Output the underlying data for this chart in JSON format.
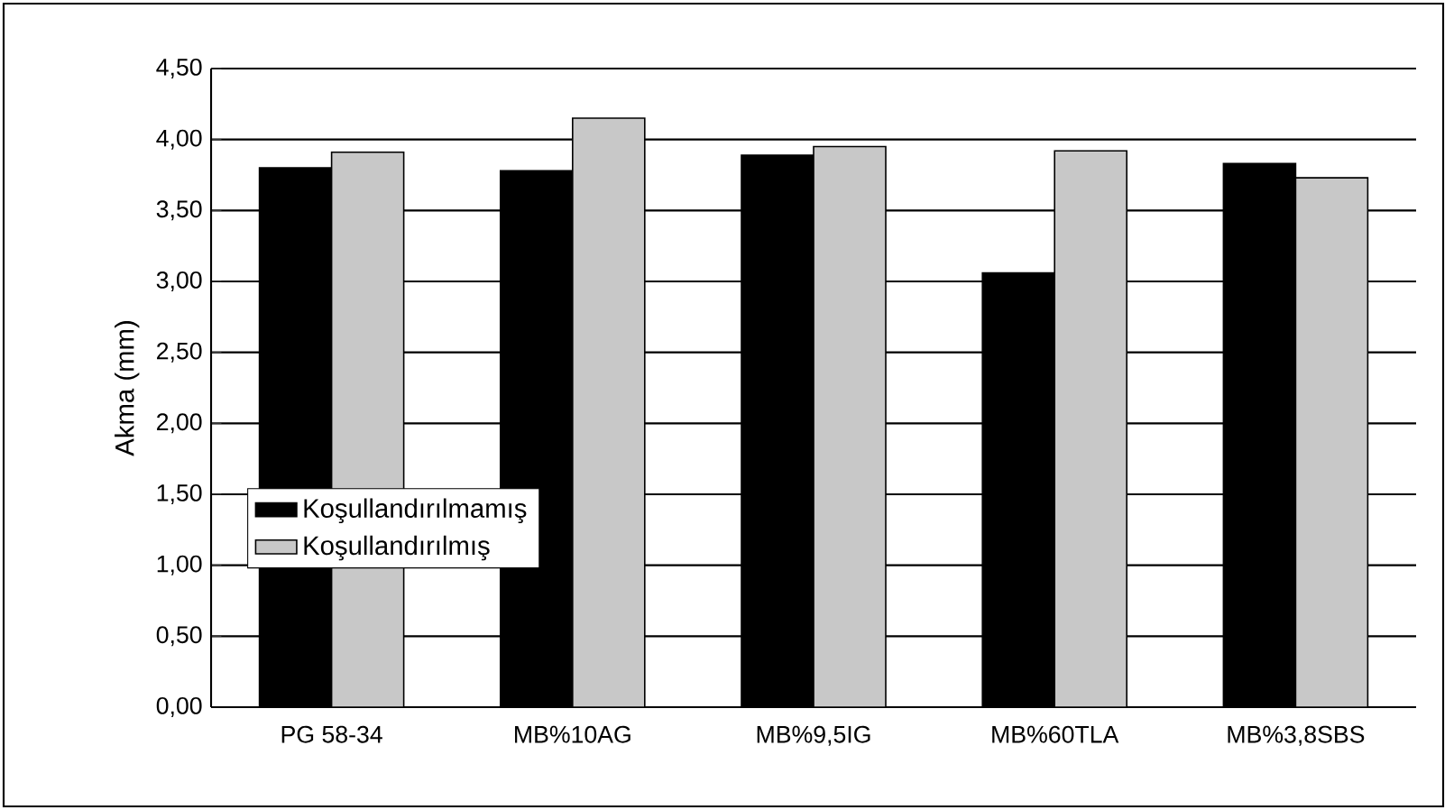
{
  "chart_data": {
    "type": "bar",
    "ylabel": "Akma (mm)",
    "categories": [
      "PG 58-34",
      "MB%10AG",
      "MB%9,5IG",
      "MB%60TLA",
      "MB%3,8SBS"
    ],
    "series": [
      {
        "name": "Koşullandırılmamış",
        "color": "#000000",
        "values": [
          3.8,
          3.78,
          3.89,
          3.06,
          3.83
        ]
      },
      {
        "name": "Koşullandırılmış",
        "color": "#c8c8c8",
        "values": [
          3.91,
          4.15,
          3.95,
          3.92,
          3.73
        ]
      }
    ],
    "ylim": [
      0,
      4.5
    ],
    "yticks": [
      {
        "value": 0,
        "label": "0,00"
      },
      {
        "value": 0.5,
        "label": "0,50"
      },
      {
        "value": 1,
        "label": "1,00"
      },
      {
        "value": 1.5,
        "label": "1,50"
      },
      {
        "value": 2,
        "label": "2,00"
      },
      {
        "value": 2.5,
        "label": "2,50"
      },
      {
        "value": 3,
        "label": "3,00"
      },
      {
        "value": 3.5,
        "label": "3,50"
      },
      {
        "value": 4,
        "label": "4,00"
      },
      {
        "value": 4.5,
        "label": "4,50"
      }
    ],
    "grid": "y",
    "legend": "left"
  }
}
